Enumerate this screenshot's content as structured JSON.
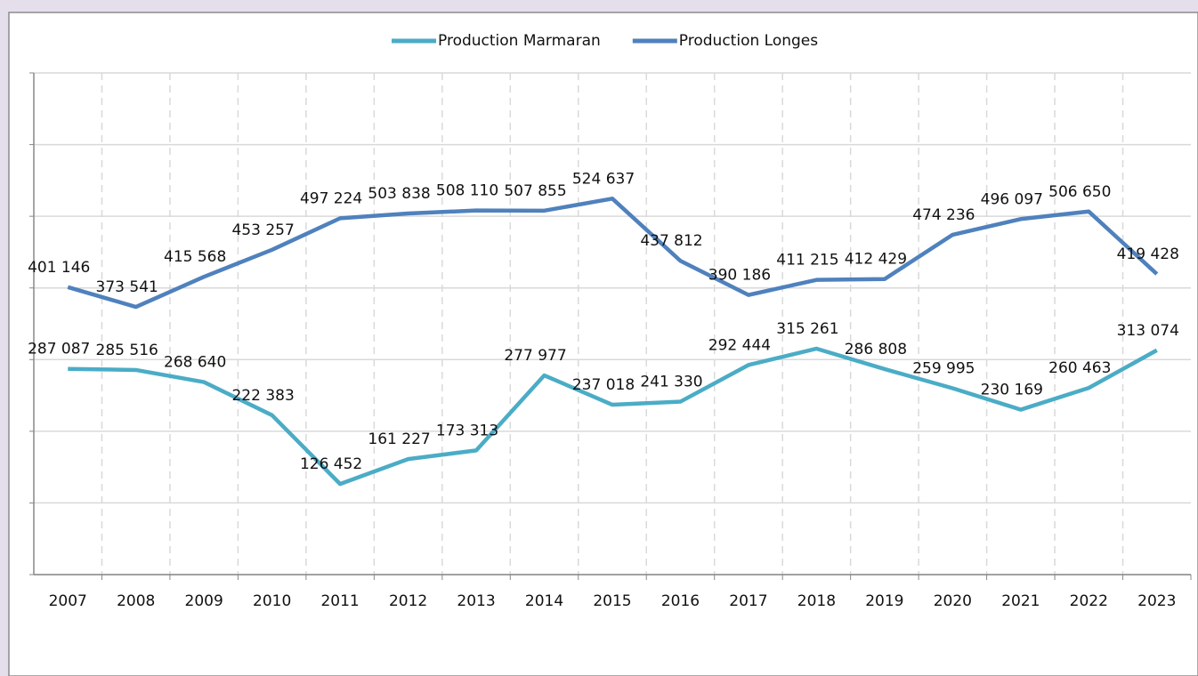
{
  "chart_data": {
    "type": "line",
    "categories": [
      "2007",
      "2008",
      "2009",
      "2010",
      "2011",
      "2012",
      "2013",
      "2014",
      "2015",
      "2016",
      "2017",
      "2018",
      "2019",
      "2020",
      "2021",
      "2022",
      "2023"
    ],
    "series": [
      {
        "name": "Production Marmaran",
        "color": "#4bacc6",
        "values": [
          287087,
          285516,
          268640,
          222383,
          126452,
          161227,
          173313,
          277977,
          237018,
          241330,
          292444,
          315261,
          286808,
          259995,
          230169,
          260463,
          313074
        ],
        "value_labels": [
          "287 087",
          "285 516",
          "268 640",
          "222 383",
          "126 452",
          "161 227",
          "173 313",
          "277 977",
          "237 018",
          "241 330",
          "292 444",
          "315 261",
          "286 808",
          "259 995",
          "230 169",
          "260 463",
          "313 074"
        ]
      },
      {
        "name": "Production Longes",
        "color": "#4f81bd",
        "values": [
          401146,
          373541,
          415568,
          453257,
          497224,
          503838,
          508110,
          507855,
          524637,
          437812,
          390186,
          411215,
          412429,
          474236,
          496097,
          506650,
          419428
        ],
        "value_labels": [
          "401 146",
          "373 541",
          "415 568",
          "453 257",
          "497 224",
          "503 838",
          "508 110",
          "507 855",
          "524 637",
          "437 812",
          "390 186",
          "411 215",
          "412 429",
          "474 236",
          "496 097",
          "506 650",
          "419 428"
        ]
      }
    ],
    "ylim": [
      0,
      700000
    ],
    "yticks": [
      0,
      100000,
      200000,
      300000,
      400000,
      500000,
      600000,
      700000
    ],
    "grid": true,
    "legend": "top"
  }
}
